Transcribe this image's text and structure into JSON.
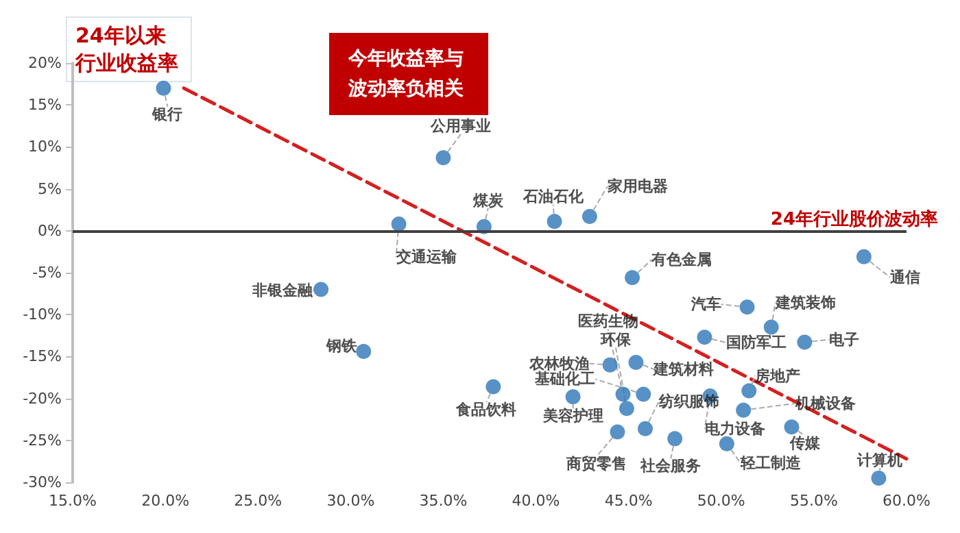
{
  "chart_data": {
    "type": "scatter",
    "xlabel": "24年行业股价波动率",
    "ylabel": "24年以来行业收益率",
    "annotations": [
      "今年收益率与波动率负相关"
    ],
    "x": [
      19.9,
      35.0,
      32.6,
      37.2,
      41.0,
      42.9,
      28.4,
      30.7,
      37.7,
      45.2,
      57.7,
      51.4,
      52.7,
      49.1,
      54.5,
      44.7,
      44.9,
      44.0,
      45.4,
      45.8,
      51.5,
      51.2,
      42.0,
      45.9,
      49.4,
      53.8,
      44.4,
      47.5,
      50.3,
      58.5
    ],
    "series": [
      {
        "color": "#2e75b6",
        "marker": "circle",
        "values": [
          17,
          8.7,
          0.8,
          0.5,
          1.1,
          1.7,
          -7.0,
          -14.4,
          -18.6,
          -5.6,
          -3.1,
          -9.1,
          -11.5,
          -12.7,
          -13.3,
          -19.5,
          -21.2,
          -16.0,
          -15.7,
          -19.5,
          -19.1,
          -21.4,
          -19.8,
          -23.6,
          -19.7,
          -23.4,
          -24.0,
          -24.8,
          -25.4,
          -29.5
        ],
        "value_labels": [
          "银行",
          "公用事业",
          "交通运输",
          "煤炭",
          "石油石化",
          "家用电器",
          "非银金融",
          "钢铁",
          "食品饮料",
          "有色金属",
          "通信",
          "汽车",
          "建筑装饰",
          "国防军工",
          "电子",
          "医药生物",
          "环保",
          "农林牧渔",
          "建筑材料",
          "基础化工",
          "房地产",
          "机械设备",
          "美容护理",
          "纺织服饰",
          "电力设备",
          "传媒",
          "商贸零售",
          "社会服务",
          "轻工制造",
          "计算机"
        ]
      },
      {
        "type": "line",
        "color": "#d42020",
        "line_style": "dashed",
        "marker": "none",
        "x": [
          21,
          60
        ],
        "values": [
          17,
          -27.2
        ]
      }
    ],
    "xlim": [
      15,
      60
    ],
    "xticks": [
      {
        "value": 15,
        "label": "15.0%"
      },
      {
        "value": 20,
        "label": "20.0%"
      },
      {
        "value": 25,
        "label": "25.0%"
      },
      {
        "value": 30,
        "label": "30.0%"
      },
      {
        "value": 35,
        "label": "35.0%"
      },
      {
        "value": 40,
        "label": "40.0%"
      },
      {
        "value": 45,
        "label": "45.0%"
      },
      {
        "value": 50,
        "label": "50.0%"
      },
      {
        "value": 55,
        "label": "55.0%"
      },
      {
        "value": 60,
        "label": "60.0%"
      }
    ],
    "ylim": [
      -30,
      20
    ],
    "yticks": [
      {
        "value": -30,
        "label": "-30%"
      },
      {
        "value": -25,
        "label": "-25%"
      },
      {
        "value": -20,
        "label": "-20%"
      },
      {
        "value": -15,
        "label": "-15%"
      },
      {
        "value": -10,
        "label": "-10%"
      },
      {
        "value": -5,
        "label": "-5%"
      },
      {
        "value": 0,
        "label": "0%"
      },
      {
        "value": 5,
        "label": "5%"
      },
      {
        "value": 10,
        "label": "10%"
      },
      {
        "value": 15,
        "label": "15%"
      },
      {
        "value": 20,
        "label": "20%"
      }
    ],
    "ref_lines": [
      {
        "axis": "y",
        "value": 0,
        "color": "#404040",
        "line_style": "solid"
      }
    ],
    "grid": false
  }
}
